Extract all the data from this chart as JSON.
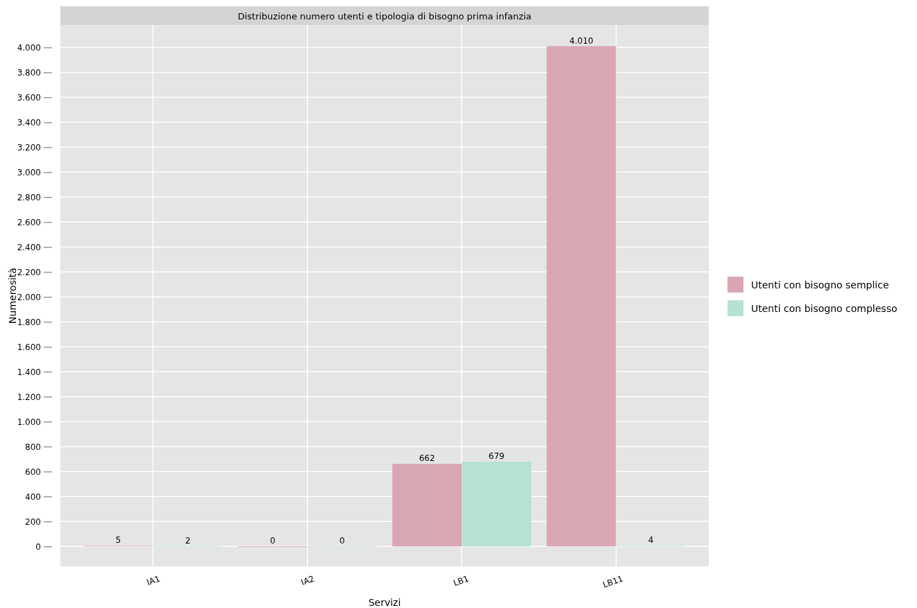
{
  "chart_data": {
    "type": "bar",
    "title": "Distribuzione numero utenti e tipologia di bisogno prima infanzia",
    "xlabel": "Servizi",
    "ylabel": "Numerosità",
    "categories": [
      "IA1",
      "IA2",
      "LB1",
      "LB11"
    ],
    "series": [
      {
        "name": "Utenti con bisogno semplice",
        "color": "#d9a7b3",
        "values": [
          5,
          0,
          662,
          4010
        ],
        "value_labels": [
          "5",
          "0",
          "662",
          "4.010"
        ]
      },
      {
        "name": "Utenti con bisogno complesso",
        "color": "#b5e2d4",
        "values": [
          2,
          0,
          679,
          4
        ],
        "value_labels": [
          "2",
          "0",
          "679",
          "4"
        ]
      }
    ],
    "ylim": [
      -160,
      4180
    ],
    "yticks": [
      0,
      200,
      400,
      600,
      800,
      {
        "value": 1000,
        "label": "1.000"
      },
      {
        "value": 1200,
        "label": "1.200"
      },
      {
        "value": 1400,
        "label": "1.400"
      },
      {
        "value": 1600,
        "label": "1.600"
      },
      {
        "value": 1800,
        "label": "1.800"
      },
      {
        "value": 2000,
        "label": "2.000"
      },
      {
        "value": 2200,
        "label": "2.200"
      },
      {
        "value": 2400,
        "label": "2.400"
      },
      {
        "value": 2600,
        "label": "2.600"
      },
      {
        "value": 2800,
        "label": "2.800"
      },
      {
        "value": 3000,
        "label": "3.000"
      },
      {
        "value": 3200,
        "label": "3.200"
      },
      {
        "value": 3400,
        "label": "3.400"
      },
      {
        "value": 3600,
        "label": "3.600"
      },
      {
        "value": 3800,
        "label": "3.800"
      },
      {
        "value": 4000,
        "label": "4.000"
      }
    ],
    "grid": true,
    "legend": "right"
  }
}
